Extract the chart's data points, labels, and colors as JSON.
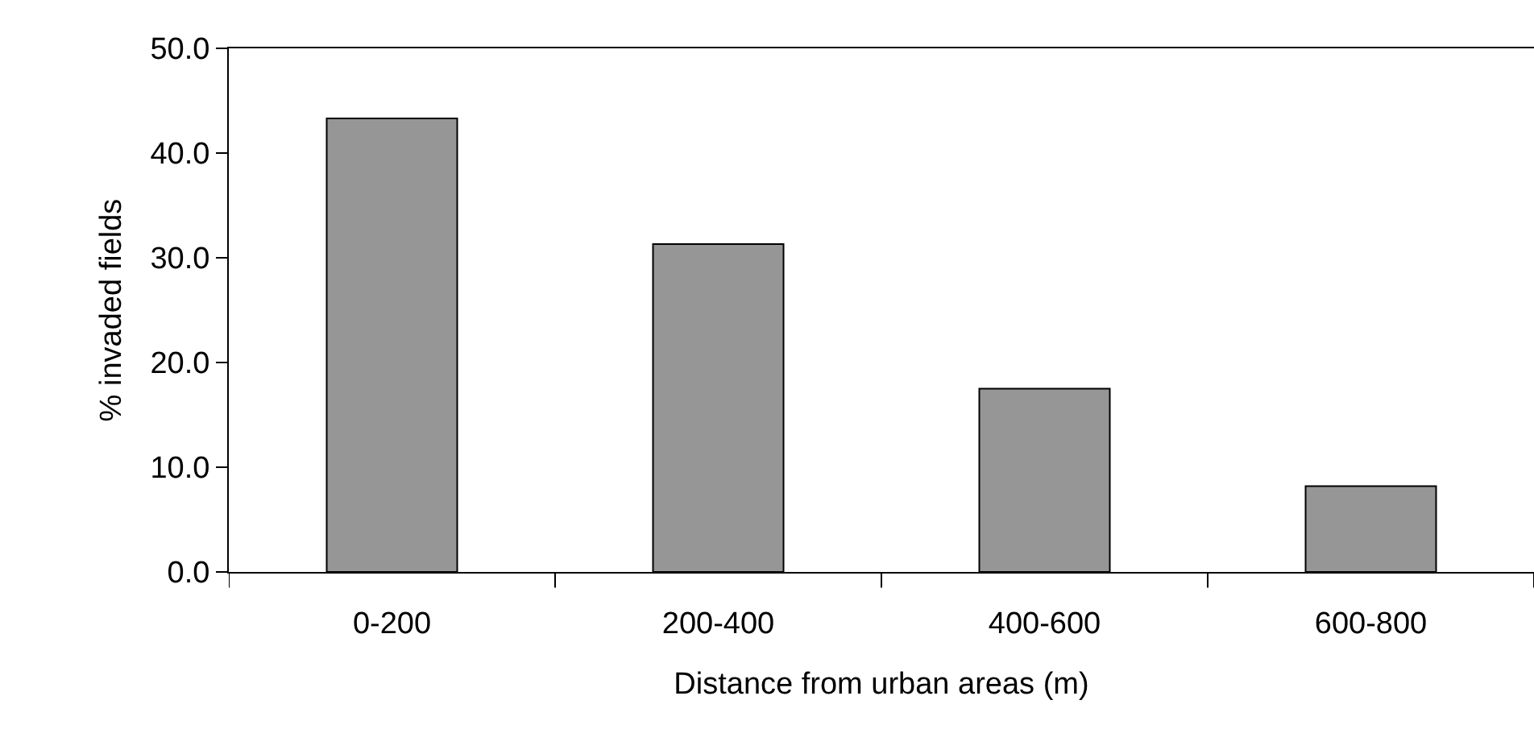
{
  "chart_data": {
    "type": "bar",
    "xlabel": "Distance from urban areas (m)",
    "ylabel": "% invaded fields",
    "categories": [
      "0-200",
      "200-400",
      "400-600",
      "600-800"
    ],
    "values": [
      43.3,
      31.3,
      17.5,
      8.2
    ],
    "color": "#969696",
    "ylim": [
      0,
      50
    ],
    "yticks": [
      {
        "value": 0,
        "label": "0.0"
      },
      {
        "value": 10,
        "label": "10.0"
      },
      {
        "value": 20,
        "label": "20.0"
      },
      {
        "value": 30,
        "label": "30.0"
      },
      {
        "value": 40,
        "label": "40.0"
      },
      {
        "value": 50,
        "label": "50.0"
      }
    ],
    "legend": false
  }
}
